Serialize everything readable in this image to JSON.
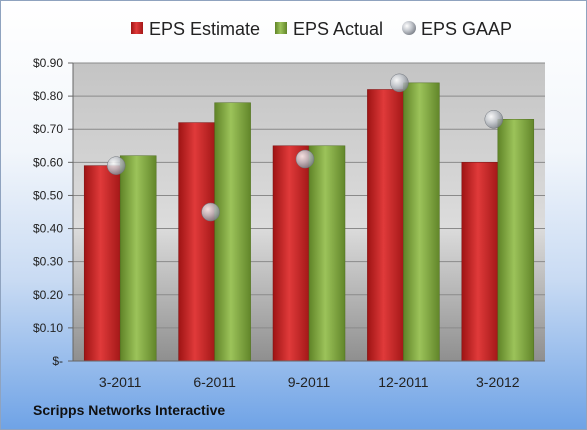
{
  "company_label": "Scripps Networks Interactive",
  "colors": {
    "estimate": "#d02a2a",
    "actual": "#8cb14a",
    "gaap": "#b9bdc4"
  },
  "chart_data": {
    "type": "bar",
    "categories": [
      "3-2011",
      "6-2011",
      "9-2011",
      "12-2011",
      "3-2012"
    ],
    "series": [
      {
        "name": "EPS Estimate",
        "type": "bar",
        "values": [
          0.59,
          0.72,
          0.65,
          0.82,
          0.6
        ]
      },
      {
        "name": "EPS Actual",
        "type": "bar",
        "values": [
          0.62,
          0.78,
          0.65,
          0.84,
          0.73
        ]
      },
      {
        "name": "EPS GAAP",
        "type": "scatter",
        "values": [
          0.59,
          0.45,
          0.61,
          0.84,
          0.73
        ]
      }
    ],
    "y_ticks": [
      "$-",
      "$0.10",
      "$0.20",
      "$0.30",
      "$0.40",
      "$0.50",
      "$0.60",
      "$0.70",
      "$0.80",
      "$0.90"
    ],
    "ylim": [
      0,
      0.9
    ],
    "grid": true,
    "legend_position": "top"
  }
}
